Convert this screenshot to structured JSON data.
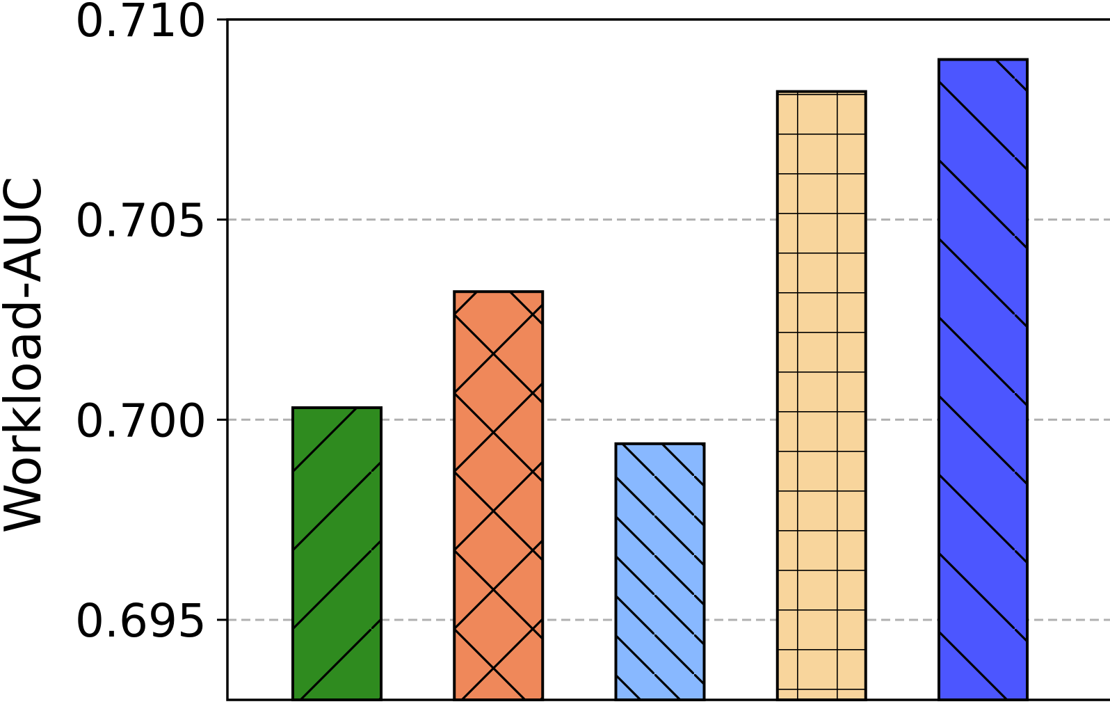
{
  "chart_data": {
    "type": "bar",
    "title": "",
    "xlabel": "",
    "ylabel": "Workload-AUC",
    "ylim": [
      0.693,
      0.71
    ],
    "yticks": [
      "0.695",
      "0.700",
      "0.705",
      "0.710"
    ],
    "ytick_values": [
      0.695,
      0.7,
      0.705,
      0.71
    ],
    "grid": "horizontal dashed",
    "legend": "none",
    "categories": [
      "",
      "",
      "",
      "",
      ""
    ],
    "values": [
      0.7003,
      0.7032,
      0.6994,
      0.7082,
      0.709
    ],
    "colors": [
      "#2f8b1f",
      "#ef885a",
      "#88b8ff",
      "#f8d59c",
      "#4c56ff"
    ],
    "hatches": [
      "slash",
      "cross-diagonal",
      "backslash",
      "grid",
      "backslash-wide"
    ]
  }
}
